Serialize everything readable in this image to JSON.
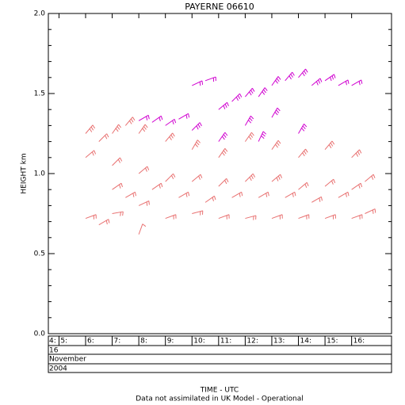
{
  "chart_data": {
    "type": "wind-barb",
    "title": "PAYERNE 06610",
    "ylabel": "HEIGHT km",
    "xlabel": "TIME - UTC",
    "footnote": "Data not assimilated in UK Model - Operational",
    "start_label": "4:",
    "date_rows": [
      "16",
      "November",
      "2004"
    ],
    "ylim": [
      0,
      2
    ],
    "yticks": [
      {
        "value": 0,
        "label": "0.0"
      },
      {
        "value": 0.5,
        "label": "0.5"
      },
      {
        "value": 1,
        "label": "1.0"
      },
      {
        "value": 1.5,
        "label": "1.5"
      },
      {
        "value": 2,
        "label": "2.0"
      }
    ],
    "yticks_minor": [
      0.1,
      0.2,
      0.3,
      0.4,
      0.6,
      0.7,
      0.8,
      0.9,
      1.1,
      1.2,
      1.3,
      1.4,
      1.6,
      1.7,
      1.8,
      1.9
    ],
    "xlim": [
      4.6,
      17.5
    ],
    "xticks": [
      {
        "value": 5,
        "label": "5:"
      },
      {
        "value": 6,
        "label": "6:"
      },
      {
        "value": 7,
        "label": "7:"
      },
      {
        "value": 8,
        "label": "8:"
      },
      {
        "value": 9,
        "label": "9:"
      },
      {
        "value": 10,
        "label": "10:"
      },
      {
        "value": 11,
        "label": "11:"
      },
      {
        "value": 12,
        "label": "12:"
      },
      {
        "value": 13,
        "label": "13:"
      },
      {
        "value": 14,
        "label": "14:"
      },
      {
        "value": 15,
        "label": "15:"
      },
      {
        "value": 16,
        "label": "16:"
      }
    ],
    "series": [
      {
        "color": "#e87070",
        "x": [
          6,
          6,
          6,
          6.5,
          6.5,
          7,
          7,
          7,
          7,
          7.5,
          7.5,
          8,
          8,
          8,
          8,
          8.5,
          9,
          9,
          9,
          9.5,
          10,
          10,
          10,
          10.5,
          11,
          11,
          11,
          11.5,
          12,
          12,
          12,
          12.5,
          13,
          13,
          13,
          13.5,
          14,
          14,
          14,
          14.5,
          15,
          15,
          15,
          15.5,
          16,
          16,
          16,
          16.5,
          16.5
        ],
        "values": [
          0.72,
          1.1,
          1.25,
          0.68,
          1.2,
          0.75,
          0.9,
          1.05,
          1.25,
          0.85,
          1.3,
          0.62,
          0.8,
          1.0,
          1.25,
          0.9,
          0.72,
          0.95,
          1.2,
          0.85,
          0.75,
          0.95,
          1.15,
          0.82,
          0.72,
          0.92,
          1.1,
          0.85,
          0.72,
          0.95,
          1.2,
          0.85,
          0.72,
          0.95,
          1.15,
          0.85,
          0.72,
          0.9,
          1.1,
          0.82,
          0.72,
          0.92,
          1.15,
          0.85,
          0.72,
          0.9,
          1.1,
          0.75,
          0.95
        ],
        "direction": [
          250,
          230,
          220,
          240,
          225,
          260,
          235,
          225,
          215,
          240,
          220,
          200,
          245,
          230,
          215,
          235,
          250,
          225,
          220,
          240,
          255,
          230,
          210,
          235,
          250,
          225,
          215,
          240,
          255,
          225,
          215,
          240,
          250,
          230,
          215,
          240,
          250,
          230,
          220,
          240,
          250,
          230,
          220,
          240,
          250,
          235,
          225,
          245,
          230
        ],
        "speed": [
          15,
          20,
          25,
          15,
          20,
          15,
          20,
          20,
          25,
          15,
          25,
          10,
          15,
          20,
          25,
          20,
          15,
          20,
          25,
          20,
          15,
          20,
          25,
          20,
          15,
          20,
          25,
          20,
          15,
          25,
          25,
          20,
          15,
          25,
          25,
          20,
          15,
          20,
          25,
          20,
          15,
          20,
          25,
          20,
          15,
          20,
          25,
          15,
          20
        ]
      },
      {
        "color": "#d000d0",
        "x": [
          8,
          8.5,
          9,
          9.5,
          10,
          10,
          10.5,
          11,
          11,
          11.5,
          12,
          12,
          12.5,
          12.5,
          13,
          13,
          13.5,
          14,
          14,
          14.5,
          15,
          15.5,
          16
        ],
        "values": [
          1.33,
          1.32,
          1.3,
          1.34,
          1.55,
          1.27,
          1.58,
          1.4,
          1.2,
          1.45,
          1.48,
          1.3,
          1.48,
          1.2,
          1.55,
          1.35,
          1.58,
          1.6,
          1.25,
          1.55,
          1.58,
          1.55,
          1.55
        ],
        "direction": [
          240,
          235,
          235,
          240,
          245,
          225,
          250,
          230,
          215,
          225,
          220,
          210,
          215,
          205,
          215,
          210,
          220,
          220,
          210,
          230,
          235,
          240,
          240
        ],
        "speed": [
          20,
          20,
          20,
          20,
          15,
          25,
          15,
          25,
          30,
          25,
          30,
          30,
          30,
          30,
          30,
          30,
          30,
          30,
          30,
          25,
          25,
          20,
          20
        ]
      }
    ]
  }
}
